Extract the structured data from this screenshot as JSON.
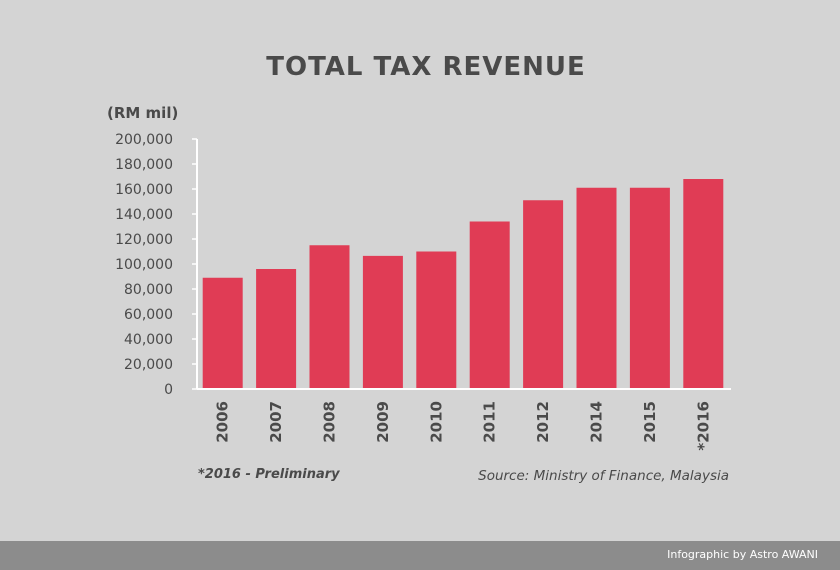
{
  "chart_data": {
    "type": "bar",
    "title": "TOTAL TAX REVENUE",
    "ylabel": "(RM mil)",
    "xlabel": "",
    "categories": [
      "2006",
      "2007",
      "2008",
      "2009",
      "2010",
      "2011",
      "2012",
      "2014",
      "2015",
      "*2016"
    ],
    "values": [
      89000,
      96000,
      115000,
      106500,
      110000,
      134000,
      151000,
      161000,
      161000,
      168000
    ],
    "ylim": [
      0,
      200000
    ],
    "yticks": [
      0,
      20000,
      40000,
      60000,
      80000,
      100000,
      120000,
      140000,
      160000,
      180000,
      200000
    ],
    "ytick_labels": [
      "0",
      "20,000",
      "40,000",
      "60,000",
      "80,000",
      "100,000",
      "120,000",
      "140,000",
      "160,000",
      "180,000",
      "200,000"
    ],
    "bar_color": "#e03c55",
    "grid": false,
    "legend": false
  },
  "notes": {
    "preliminary": "*2016 - Preliminary",
    "source": "Source: Ministry of Finance, Malaysia"
  },
  "footer": {
    "credit": "Infographic by Astro AWANI"
  },
  "colors": {
    "background": "#d4d4d4",
    "text": "#4a4a4a",
    "footer_bar": "#8c8c8c"
  }
}
